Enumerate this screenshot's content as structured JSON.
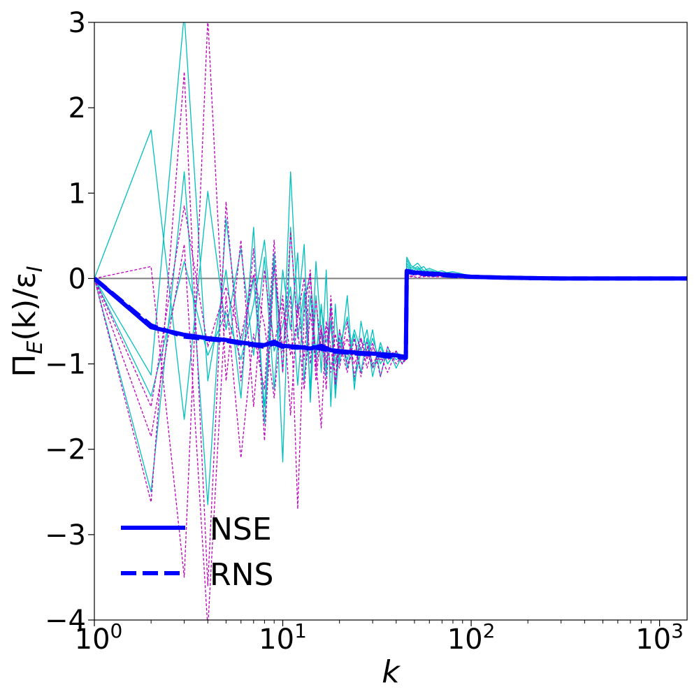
{
  "chart_data": {
    "type": "line",
    "title": "",
    "xlabel": "k",
    "ylabel_main": "Π",
    "ylabel_sub": "E",
    "ylabel_mid": "(k)/ε",
    "ylabel_sub2": "I",
    "xscale": "log",
    "xlim": [
      1,
      1400
    ],
    "ylim": [
      -4,
      3
    ],
    "x_ticks": [
      {
        "value": 1,
        "base": "10",
        "exp": "0"
      },
      {
        "value": 10,
        "base": "10",
        "exp": "1"
      },
      {
        "value": 100,
        "base": "10",
        "exp": "2"
      },
      {
        "value": 1000,
        "base": "10",
        "exp": "3"
      }
    ],
    "y_ticks": [
      {
        "value": 3,
        "label": "3"
      },
      {
        "value": 2,
        "label": "2"
      },
      {
        "value": 1,
        "label": "1"
      },
      {
        "value": 0,
        "label": "0"
      },
      {
        "value": -1,
        "label": "−1"
      },
      {
        "value": -2,
        "label": "−2"
      },
      {
        "value": -3,
        "label": "−3"
      },
      {
        "value": -4,
        "label": "−4"
      }
    ],
    "grid": false,
    "zero_line": {
      "y": 0,
      "color": "#808080"
    },
    "legend": {
      "placement": "lower-left",
      "entries": [
        {
          "label": "NSE",
          "color": "#0000ff",
          "style": "solid"
        },
        {
          "label": "RNS",
          "color": "#0000ff",
          "style": "dashed"
        }
      ]
    },
    "series": [
      {
        "name": "NSE",
        "color": "#0000ff",
        "style": "solid",
        "width": 6,
        "x": [
          1,
          2,
          3,
          4,
          5,
          6,
          7,
          8,
          9,
          10,
          12,
          14,
          16,
          18,
          20,
          25,
          30,
          35,
          40,
          45,
          45.5,
          50,
          60,
          80,
          100,
          150,
          200,
          300,
          500,
          1000,
          1400
        ],
        "y": [
          0,
          -0.57,
          -0.66,
          -0.7,
          -0.72,
          -0.75,
          -0.77,
          -0.78,
          -0.74,
          -0.79,
          -0.8,
          -0.82,
          -0.79,
          -0.84,
          -0.85,
          -0.87,
          -0.88,
          -0.89,
          -0.9,
          -0.92,
          0.09,
          0.07,
          0.06,
          0.04,
          0.02,
          0.01,
          0.005,
          0.0,
          0.0,
          0.0,
          0.0
        ]
      },
      {
        "name": "RNS",
        "color": "#0000ff",
        "style": "dashed",
        "width": 6,
        "x": [
          1,
          2,
          3,
          4,
          5,
          6,
          7,
          8,
          9,
          10,
          12,
          14,
          16,
          18,
          20,
          25,
          30,
          35,
          40,
          45,
          45.5,
          50,
          60,
          80,
          100,
          150,
          200,
          300,
          500,
          1000,
          1400
        ],
        "y": [
          0,
          -0.55,
          -0.68,
          -0.71,
          -0.73,
          -0.76,
          -0.78,
          -0.8,
          -0.76,
          -0.8,
          -0.81,
          -0.8,
          -0.82,
          -0.85,
          -0.86,
          -0.88,
          -0.89,
          -0.91,
          -0.92,
          -0.93,
          0.08,
          0.06,
          0.05,
          0.03,
          0.02,
          0.01,
          0.005,
          0.0,
          0.0,
          0.0,
          0.0
        ]
      }
    ],
    "ensemble": [
      {
        "color": "#00bfbf",
        "style": "solid",
        "x": [
          1,
          2,
          3,
          4,
          5,
          6,
          7,
          8,
          9,
          10,
          11,
          12,
          13,
          14,
          15,
          16,
          17,
          18,
          19,
          20,
          22,
          24,
          26,
          28,
          30,
          33,
          36,
          40,
          43,
          45,
          45.5,
          48,
          52,
          56,
          60,
          70,
          80,
          100
        ],
        "y": [
          0,
          1.74,
          -1.65,
          1.02,
          -0.6,
          0.35,
          -0.9,
          0.25,
          -1.3,
          0.1,
          -0.6,
          0.3,
          -1.2,
          -0.2,
          -0.95,
          -0.3,
          -1.05,
          -0.5,
          -1.3,
          -0.6,
          -1.05,
          -0.65,
          -1.1,
          -0.7,
          -1.15,
          -0.75,
          -1.0,
          -0.85,
          -0.95,
          -0.92,
          0.22,
          0.12,
          0.18,
          0.09,
          0.12,
          0.06,
          0.08,
          0.03
        ]
      },
      {
        "color": "#00bfbf",
        "style": "solid",
        "x": [
          1,
          2,
          3,
          4,
          5,
          6,
          7,
          8,
          9,
          10,
          11,
          12,
          13,
          14,
          15,
          16,
          17,
          18,
          19,
          20,
          22,
          24,
          26,
          28,
          30,
          33,
          36,
          40,
          43,
          45,
          45.5,
          48,
          52,
          56,
          60,
          70,
          80,
          100
        ],
        "y": [
          0,
          -1.13,
          3.1,
          -1.2,
          0.1,
          -1.4,
          0.6,
          -1.7,
          0.2,
          -1.1,
          1.25,
          -0.4,
          0.4,
          -1.45,
          -0.2,
          -1.1,
          0.1,
          -1.5,
          -0.3,
          -1.0,
          -0.2,
          -1.3,
          -0.5,
          -0.9,
          -0.6,
          -1.15,
          -0.8,
          -1.05,
          -0.9,
          -0.95,
          0.25,
          0.15,
          0.1,
          0.14,
          0.06,
          0.09,
          0.04,
          0.02
        ]
      },
      {
        "color": "#00bfbf",
        "style": "solid",
        "x": [
          1,
          2,
          3,
          4,
          5,
          6,
          7,
          8,
          9,
          10,
          11,
          12,
          13,
          14,
          15,
          16,
          17,
          18,
          19,
          20,
          22,
          24,
          26,
          28,
          30,
          33,
          36,
          40,
          43,
          45,
          45.5,
          48,
          52,
          56,
          60,
          70,
          80,
          100
        ],
        "y": [
          0,
          -2.5,
          1.25,
          -2.65,
          0.7,
          -0.8,
          0.0,
          -1.5,
          0.3,
          -2.15,
          0.6,
          -0.7,
          -0.15,
          -1.3,
          0.2,
          -0.65,
          -1.15,
          -0.3,
          -1.4,
          -0.8,
          -0.45,
          -1.2,
          -0.85,
          -0.6,
          -1.05,
          -0.8,
          -1.0,
          -0.85,
          -1.0,
          -0.9,
          0.18,
          0.1,
          0.14,
          0.07,
          0.1,
          0.05,
          0.06,
          0.03
        ]
      },
      {
        "color": "#00bfbf",
        "style": "solid",
        "x": [
          1,
          2,
          3,
          4,
          5,
          6,
          7,
          8,
          9,
          10,
          11,
          12,
          13,
          14,
          15,
          16,
          17,
          18,
          19,
          20,
          22,
          24,
          26,
          28,
          30,
          33,
          36,
          40,
          43,
          45,
          45.5,
          48,
          52,
          56,
          60,
          70,
          80,
          100
        ],
        "y": [
          0,
          -1.38,
          0.2,
          -0.9,
          -0.4,
          -0.95,
          -0.3,
          0.45,
          -0.85,
          -0.55,
          -0.1,
          -1.25,
          -0.25,
          0.05,
          -0.9,
          -0.35,
          -0.75,
          -0.55,
          -1.0,
          -0.7,
          -0.95,
          -0.6,
          -0.85,
          -0.9,
          -0.7,
          -1.0,
          -0.85,
          -0.95,
          -0.9,
          -0.93,
          0.15,
          0.08,
          0.12,
          0.06,
          0.08,
          0.04,
          0.05,
          0.02
        ]
      },
      {
        "color": "#bf00bf",
        "style": "dashed",
        "x": [
          1,
          2,
          3,
          4,
          5,
          6,
          7,
          8,
          9,
          10,
          11,
          12,
          13,
          14,
          15,
          16,
          17,
          18,
          19,
          20,
          22,
          24,
          26,
          28,
          30,
          33,
          36,
          40,
          43,
          45,
          45.5,
          48,
          52,
          56,
          60,
          70,
          80,
          100
        ],
        "y": [
          0,
          0.14,
          -3.5,
          3.05,
          -1.2,
          0.45,
          -1.5,
          0.1,
          -0.8,
          -0.2,
          -1.6,
          -0.3,
          -0.95,
          0.05,
          -1.2,
          -0.6,
          -1.0,
          -0.35,
          -1.25,
          -0.75,
          -1.1,
          -0.7,
          -1.15,
          -0.8,
          -1.05,
          -0.9,
          -1.1,
          -0.85,
          -1.0,
          -0.95,
          0.1,
          0.06,
          0.09,
          0.05,
          0.07,
          0.03,
          0.04,
          0.02
        ]
      },
      {
        "color": "#bf00bf",
        "style": "dashed",
        "x": [
          1,
          2,
          3,
          4,
          5,
          6,
          7,
          8,
          9,
          10,
          11,
          12,
          13,
          14,
          15,
          16,
          17,
          18,
          19,
          20,
          22,
          24,
          26,
          28,
          30,
          33,
          36,
          40,
          43,
          45,
          45.5,
          48,
          52,
          56,
          60,
          70,
          80,
          100
        ],
        "y": [
          0,
          -2.62,
          2.42,
          -3.6,
          0.9,
          -1.2,
          0.35,
          -1.9,
          0.15,
          -0.85,
          -0.2,
          -2.7,
          -0.4,
          0.1,
          -1.05,
          -0.55,
          -1.3,
          -0.2,
          -0.9,
          -1.05,
          -0.5,
          -1.15,
          -0.7,
          -0.95,
          -0.75,
          -1.15,
          -0.8,
          -1.0,
          -0.9,
          -0.94,
          0.07,
          0.05,
          0.08,
          0.04,
          0.06,
          0.03,
          0.04,
          0.01
        ]
      },
      {
        "color": "#bf00bf",
        "style": "dashed",
        "x": [
          1,
          2,
          3,
          4,
          5,
          6,
          7,
          8,
          9,
          10,
          11,
          12,
          13,
          14,
          15,
          16,
          17,
          18,
          19,
          20,
          22,
          24,
          26,
          28,
          30,
          33,
          36,
          40,
          43,
          45,
          45.5,
          48,
          52,
          56,
          60,
          70,
          80,
          100
        ],
        "y": [
          0,
          -1.85,
          0.4,
          -4.1,
          -0.2,
          -2.1,
          -0.65,
          -1.3,
          0.45,
          -1.1,
          0.55,
          -0.6,
          -1.3,
          -0.4,
          -0.95,
          -1.75,
          -0.5,
          -0.8,
          -1.2,
          -0.6,
          -1.0,
          -0.85,
          -0.7,
          -1.05,
          -0.8,
          -0.95,
          -0.9,
          -0.85,
          -1.0,
          -0.92,
          0.04,
          0.02,
          0.05,
          0.02,
          0.04,
          0.02,
          0.03,
          0.01
        ]
      },
      {
        "color": "#bf00bf",
        "style": "dashed",
        "x": [
          1,
          2,
          3,
          4,
          5,
          6,
          7,
          8,
          9,
          10,
          11,
          12,
          13,
          14,
          15,
          16,
          17,
          18,
          19,
          20,
          22,
          24,
          26,
          28,
          30,
          33,
          36,
          40,
          43,
          45,
          45.5,
          48,
          52,
          56,
          60,
          70,
          80,
          100
        ],
        "y": [
          0,
          -1.5,
          0.85,
          -0.8,
          -0.1,
          -0.7,
          0.05,
          -0.55,
          -1.4,
          -0.3,
          -0.9,
          -0.45,
          0.0,
          -1.0,
          -0.25,
          -0.85,
          -0.55,
          -1.1,
          -0.65,
          -0.9,
          -0.7,
          -1.0,
          -0.8,
          -0.75,
          -1.0,
          -0.85,
          -0.95,
          -0.9,
          -0.95,
          -0.93,
          0.02,
          0.03,
          0.01,
          0.03,
          0.02,
          0.02,
          0.01,
          0.01
        ]
      }
    ]
  }
}
